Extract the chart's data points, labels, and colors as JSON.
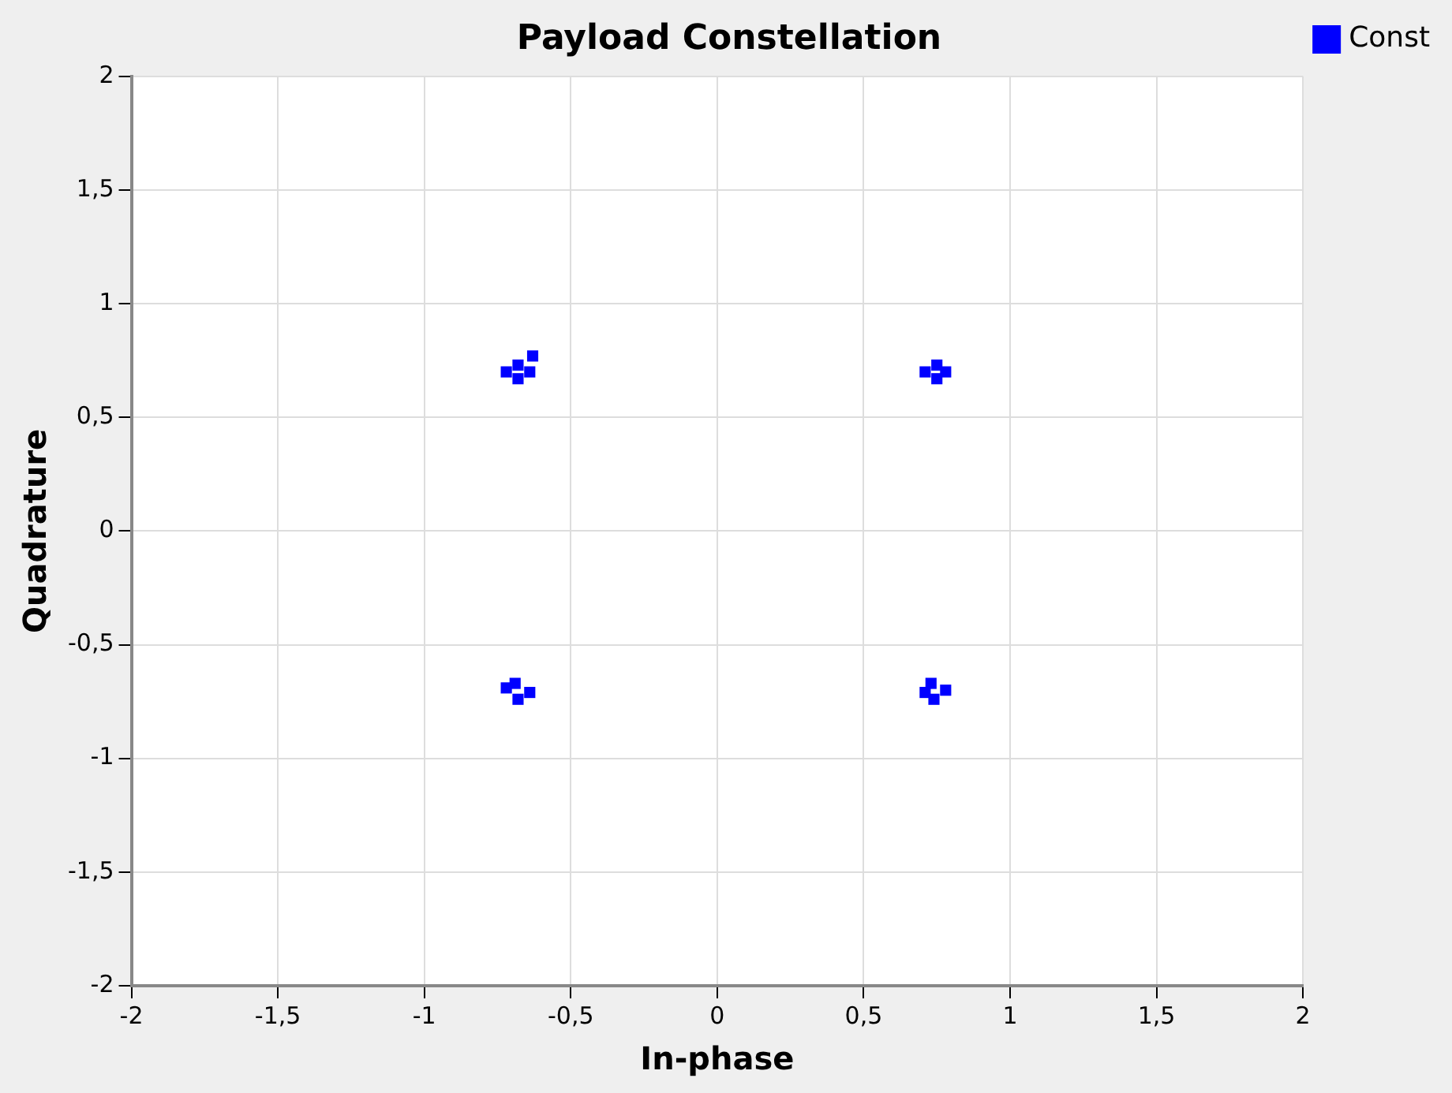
{
  "chart_data": {
    "type": "scatter",
    "title": "Payload Constellation",
    "xlabel": "In-phase",
    "ylabel": "Quadrature",
    "xlim": [
      -2,
      2
    ],
    "ylim": [
      -2,
      2
    ],
    "xticks": [
      -2,
      {
        "value": -1.5,
        "label": "-1,5"
      },
      -1,
      {
        "value": -0.5,
        "label": "-0,5"
      },
      0,
      {
        "value": 0.5,
        "label": "0,5"
      },
      1,
      {
        "value": 1.5,
        "label": "1,5"
      },
      2
    ],
    "yticks": [
      -2,
      {
        "value": -1.5,
        "label": "-1,5"
      },
      -1,
      {
        "value": -0.5,
        "label": "-0,5"
      },
      0,
      {
        "value": 0.5,
        "label": "0,5"
      },
      1,
      {
        "value": 1.5,
        "label": "1,5"
      },
      2
    ],
    "grid": true,
    "legend": "top right",
    "marker": "square",
    "series": [
      {
        "name": "Const",
        "color": "#0000ff",
        "x": [
          -0.72,
          -0.68,
          -0.64,
          -0.68,
          -0.63,
          0.71,
          0.75,
          0.78,
          0.75,
          -0.72,
          -0.68,
          -0.64,
          -0.69,
          0.71,
          0.74,
          0.78,
          0.73
        ],
        "values": [
          0.7,
          0.67,
          0.7,
          0.73,
          0.77,
          0.7,
          0.67,
          0.7,
          0.73,
          -0.69,
          -0.74,
          -0.71,
          -0.67,
          -0.71,
          -0.74,
          -0.7,
          -0.67
        ]
      }
    ]
  }
}
